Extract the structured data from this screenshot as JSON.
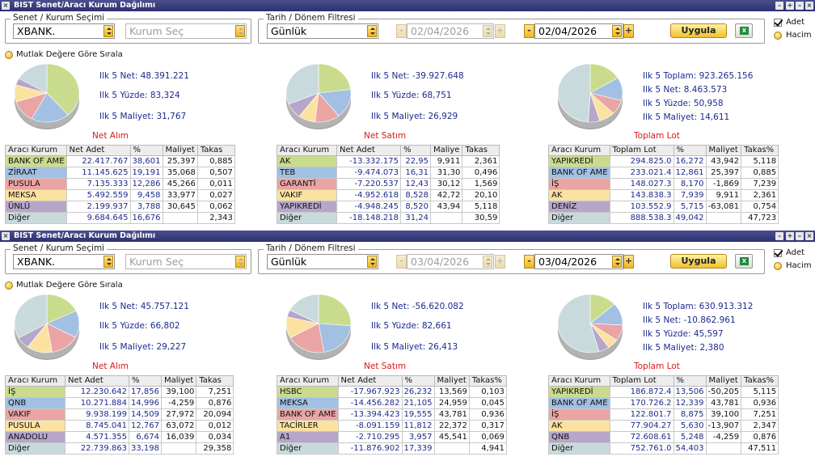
{
  "panels": [
    {
      "title": "BIST Senet/Aracı Kurum Dağılımı",
      "security_legend": "Senet / Kurum Seçimi",
      "security_value": "XBANK.",
      "broker_placeholder": "Kurum Seç",
      "date_legend": "Tarih / Dönem Filtresi",
      "period_value": "Günlük",
      "date_from": "02/04/2026",
      "date_to": "02/04/2026",
      "apply_label": "Uygula",
      "excel_icon": "X",
      "opt_adet": "Adet",
      "opt_hacim": "Hacim",
      "sort_label": "Mutlak Değere Göre Sırala",
      "buy": {
        "stats": [
          "Ilk 5 Net: 48.391.221",
          "Ilk 5 Yüzde: 83,324",
          "Ilk 5 Maliyet: 31,767"
        ],
        "caption": "Net Alım",
        "headers": [
          "Aracı Kurum",
          "Net Adet",
          "%",
          "Maliyet",
          "Takas"
        ],
        "rows": [
          [
            "BANK OF AME",
            "22.417.767",
            "38,601",
            "25,397",
            "0,885"
          ],
          [
            "ZİRAAT",
            "11.145.625",
            "19,191",
            "35,068",
            "0,507"
          ],
          [
            "PUSULA",
            "7.135.333",
            "12,286",
            "45,266",
            "0,011"
          ],
          [
            "MEKSA",
            "5.492.559",
            "9,458",
            "33,977",
            "0,027"
          ],
          [
            "ÜNLÜ",
            "2.199.937",
            "3,788",
            "30,645",
            "0,062"
          ]
        ],
        "other": [
          "Diğer",
          "9.684.645",
          "16,676",
          "",
          "2,343"
        ],
        "pie": [
          38.601,
          19.191,
          12.286,
          9.458,
          3.788,
          16.676
        ]
      },
      "sell": {
        "stats": [
          "Ilk 5 Net: -39.927.648",
          "Ilk 5 Yüzde: 68,751",
          "Ilk 5 Maliyet: 26,929"
        ],
        "caption": "Net Satım",
        "headers": [
          "Aracı Kurum",
          "Net Adet",
          "%",
          "Maliye",
          "Takas"
        ],
        "rows": [
          [
            "AK",
            "-13.332.175",
            "22,95",
            "9,911",
            "2,361"
          ],
          [
            "TEB",
            "-9.474.073",
            "16,31",
            "31,30",
            "0,496"
          ],
          [
            "GARANTİ",
            "-7.220.537",
            "12,43",
            "30,12",
            "1,569"
          ],
          [
            "VAKIF",
            "-4.952.618",
            "8,528",
            "42,72",
            "20,10"
          ],
          [
            "YAPIKREDİ",
            "-4.948.245",
            "8,520",
            "43,94",
            "5,118"
          ]
        ],
        "other": [
          "Diğer",
          "-18.148.218",
          "31,24",
          "",
          "30,59"
        ],
        "pie": [
          22.95,
          16.31,
          12.43,
          8.528,
          8.52,
          31.24
        ]
      },
      "lot": {
        "stats": [
          "Ilk 5 Toplam: 923.265.156",
          "Ilk 5 Net: 8.463.573",
          "Ilk 5 Yüzde: 50,958",
          "Ilk 5 Maliyet: 14,611"
        ],
        "caption": "Toplam Lot",
        "headers": [
          "Aracı Kurum",
          "Toplam Lot",
          "%",
          "Maliyet",
          "Takas%"
        ],
        "rows": [
          [
            "YAPIKREDİ",
            "294.825.0",
            "16,272",
            "43,942",
            "5,118"
          ],
          [
            "BANK OF AME",
            "233.021.4",
            "12,861",
            "25,397",
            "0,885"
          ],
          [
            "İŞ",
            "148.027.3",
            "8,170",
            "-1,869",
            "7,239"
          ],
          [
            "AK",
            "143.838.3",
            "7,939",
            "9,911",
            "2,361"
          ],
          [
            "DENİZ",
            "103.552.9",
            "5,715",
            "-63,081",
            "0,754"
          ]
        ],
        "other": [
          "Diğer",
          "888.538.3",
          "49,042",
          "",
          "47,723"
        ],
        "pie": [
          16.272,
          12.861,
          8.17,
          7.939,
          5.715,
          49.042
        ]
      }
    },
    {
      "title": "BIST Senet/Aracı Kurum Dağılımı",
      "security_legend": "Senet / Kurum Seçimi",
      "security_value": "XBANK.",
      "broker_placeholder": "Kurum Seç",
      "date_legend": "Tarih / Dönem Filtresi",
      "period_value": "Günlük",
      "date_from": "03/04/2026",
      "date_to": "03/04/2026",
      "apply_label": "Uygula",
      "excel_icon": "X",
      "opt_adet": "Adet",
      "opt_hacim": "Hacim",
      "sort_label": "Mutlak Değere Göre Sırala",
      "buy": {
        "stats": [
          "Ilk 5 Net: 45.757.121",
          "Ilk 5 Yüzde: 66,802",
          "Ilk 5 Maliyet: 29,227"
        ],
        "caption": "Net Alım",
        "headers": [
          "Aracı Kurum",
          "Net Adet",
          "%",
          "Maliyet",
          "Takas"
        ],
        "rows": [
          [
            "İŞ",
            "12.230.642",
            "17,856",
            "39,100",
            "7,251"
          ],
          [
            "QNB",
            "10.271.884",
            "14,996",
            "-4,259",
            "0,876"
          ],
          [
            "VAKIF",
            "9.938.199",
            "14,509",
            "27,972",
            "20,094"
          ],
          [
            "PUSULA",
            "8.745.041",
            "12,767",
            "63,072",
            "0,012"
          ],
          [
            "ANADOLU",
            "4.571.355",
            "6,674",
            "16,039",
            "0,034"
          ]
        ],
        "other": [
          "Diğer",
          "22.739.863",
          "33,198",
          "",
          "29,358"
        ],
        "pie": [
          17.856,
          14.996,
          14.509,
          12.767,
          6.674,
          33.198
        ]
      },
      "sell": {
        "stats": [
          "Ilk 5 Net: -56.620.082",
          "Ilk 5 Yüzde: 82,661",
          "Ilk 5 Maliyet: 26,413"
        ],
        "caption": "Net Satım",
        "headers": [
          "Aracı Kurum",
          "Net Adet",
          "%",
          "Maliyet",
          "Takas%"
        ],
        "rows": [
          [
            "HSBC",
            "-17.967.923",
            "26,232",
            "13,569",
            "0,103"
          ],
          [
            "MEKSA",
            "-14.456.282",
            "21,105",
            "24,959",
            "0,045"
          ],
          [
            "BANK OF AME",
            "-13.394.423",
            "19,555",
            "43,781",
            "0,936"
          ],
          [
            "TACİRLER",
            "-8.091.159",
            "11,812",
            "22,372",
            "0,317"
          ],
          [
            "A1",
            "-2.710.295",
            "3,957",
            "45,541",
            "0,069"
          ]
        ],
        "other": [
          "Diğer",
          "-11.876.902",
          "17,339",
          "",
          "4,941"
        ],
        "pie": [
          26.232,
          21.105,
          19.555,
          11.812,
          3.957,
          17.339
        ]
      },
      "lot": {
        "stats": [
          "Ilk 5 Toplam: 630.913.312",
          "Ilk 5 Net: -10.862.961",
          "Ilk 5 Yüzde: 45,597",
          "Ilk 5 Maliyet: 2,380"
        ],
        "caption": "Toplam Lot",
        "headers": [
          "Aracı Kurum",
          "Toplam Lot",
          "%",
          "Maliyet",
          "Takas%"
        ],
        "rows": [
          [
            "YAPIKREDİ",
            "186.872.4",
            "13,506",
            "-50,205",
            "5,115"
          ],
          [
            "BANK OF AME",
            "170.726.2",
            "12,339",
            "43,781",
            "0,936"
          ],
          [
            "İŞ",
            "122.801.7",
            "8,875",
            "39,100",
            "7,251"
          ],
          [
            "AK",
            "77.904.27",
            "5,630",
            "-13,907",
            "2,347"
          ],
          [
            "QNB",
            "72.608.61",
            "5,248",
            "-4,259",
            "0,876"
          ]
        ],
        "other": [
          "Diğer",
          "752.761.0",
          "54,403",
          "",
          "47,511"
        ],
        "pie": [
          13.506,
          12.339,
          8.875,
          5.63,
          5.248,
          54.403
        ]
      }
    }
  ],
  "colors": {
    "rows": [
      "#c9dc8e",
      "#a2c0e4",
      "#eba4a4",
      "#fbe2a0",
      "#b6a6ca",
      "#c9dadc"
    ],
    "title_bar": "#2d3170",
    "stat_text": "#1c2a8c",
    "caption_text": "#d71919"
  }
}
